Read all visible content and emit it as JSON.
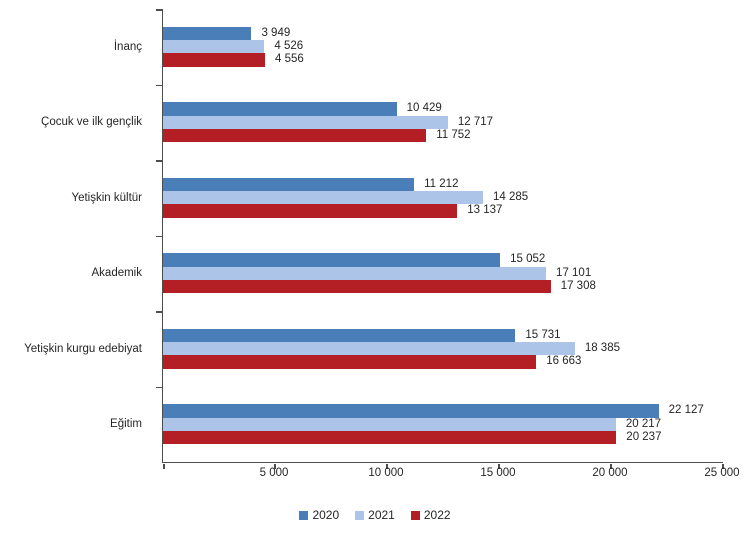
{
  "chart_data": {
    "type": "bar",
    "orientation": "horizontal",
    "title": "",
    "xlabel": "",
    "ylabel": "",
    "xlim": [
      0,
      25000
    ],
    "xticks": [
      {
        "value": 5000,
        "label": "5 000"
      },
      {
        "value": 10000,
        "label": "10 000"
      },
      {
        "value": 15000,
        "label": "15 000"
      },
      {
        "value": 20000,
        "label": "20 000"
      },
      {
        "value": 25000,
        "label": "25 000"
      }
    ],
    "grid": false,
    "legend_position": "bottom-center",
    "categories": [
      "İnanç",
      "Çocuk ve ilk gençlik",
      "Yetişkin kültür",
      "Akademik",
      "Yetişkin kurgu edebiyat",
      "Eğitim"
    ],
    "series": [
      {
        "name": "2020",
        "color": "#4A7EB8",
        "values": [
          3949,
          10429,
          11212,
          15052,
          15731,
          22127
        ],
        "labels": [
          "3 949",
          "10 429",
          "11 212",
          "15 052",
          "15 731",
          "22 127"
        ]
      },
      {
        "name": "2021",
        "color": "#ABC4E8",
        "values": [
          4526,
          12717,
          14285,
          17101,
          18385,
          20217
        ],
        "labels": [
          "4 526",
          "12 717",
          "14 285",
          "17 101",
          "18 385",
          "20 217"
        ]
      },
      {
        "name": "2022",
        "color": "#B41F25",
        "values": [
          4556,
          11752,
          13137,
          17308,
          16663,
          20237
        ],
        "labels": [
          "4 556",
          "11 752",
          "13 137",
          "17 308",
          "16 663",
          "20 237"
        ]
      }
    ],
    "colors": {
      "axis": "#4d4d4d",
      "text": "#262626",
      "background": "#ffffff"
    }
  }
}
